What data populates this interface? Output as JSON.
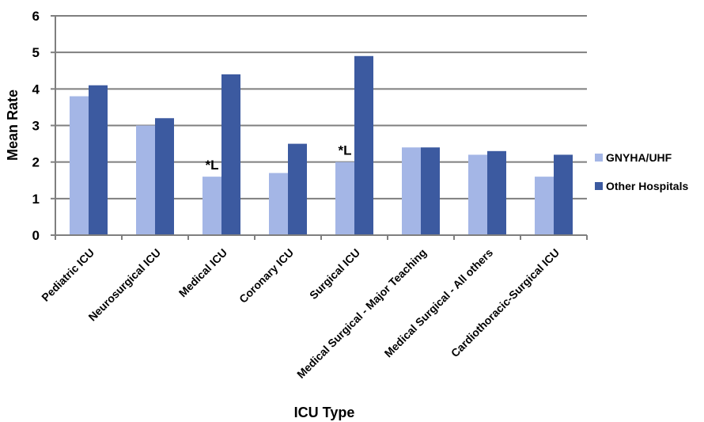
{
  "chart_data": {
    "type": "bar",
    "categories": [
      "Pediatric ICU",
      "Neurosurgical ICU",
      "Medical ICU",
      "Coronary ICU",
      "Surgical ICU",
      "Medical Surgical - Major Teaching",
      "Medical Surgical - All others",
      "Cardiothoracic-Surgical ICU"
    ],
    "series": [
      {
        "name": "GNYHA/UHF",
        "color": "#a4b6e6",
        "values": [
          3.8,
          3.0,
          1.6,
          1.7,
          2.0,
          2.4,
          2.2,
          1.6
        ]
      },
      {
        "name": "Other Hospitals",
        "color": "#3c5aa0",
        "values": [
          4.1,
          3.2,
          4.4,
          2.5,
          4.9,
          2.4,
          2.3,
          2.2
        ]
      }
    ],
    "annotations": [
      {
        "category_index": 2,
        "series_index": 0,
        "text": "*L"
      },
      {
        "category_index": 4,
        "series_index": 0,
        "text": "*L"
      }
    ],
    "xlabel": "ICU Type",
    "ylabel": "Mean Rate",
    "ylim": [
      0,
      6
    ],
    "yticks": [
      0,
      1,
      2,
      3,
      4,
      5,
      6
    ],
    "grid": true,
    "legend_position": "right"
  }
}
